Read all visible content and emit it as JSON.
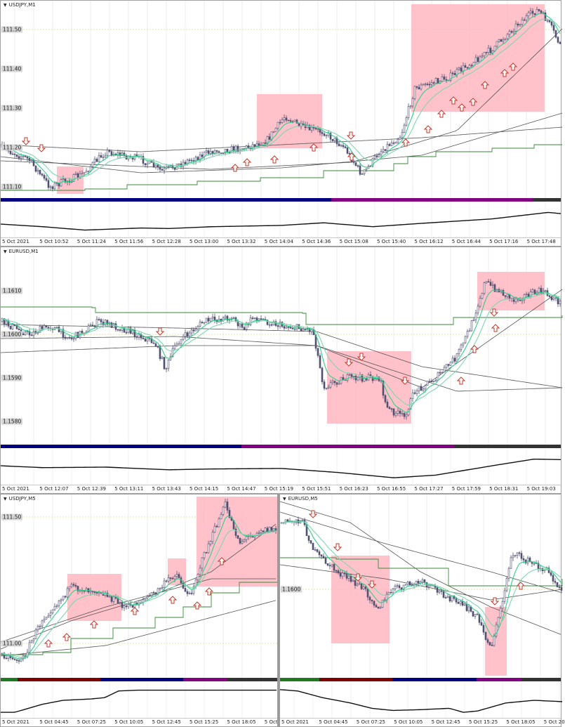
{
  "colors": {
    "bull_bear_candle": "#505070",
    "fast_ma": "#2ecf8a",
    "slow_ma": "#7fd6b0",
    "envelope": "#555555",
    "step_line": "#3a8a3a",
    "zone": "#ffb6c1",
    "arrow": "#c0392b",
    "level_line": "#e6e6a0",
    "oscillator": "#111111"
  },
  "session_colors": {
    "green": "#1f7a1f",
    "darkred": "#800000",
    "navy": "#000080",
    "purple": "#800080",
    "gray": "#333333"
  },
  "panels": [
    {
      "symbol": "USDJPY,M1",
      "price_labels": [
        "111.50",
        "111.40",
        "111.30",
        "111.20",
        "111.10"
      ],
      "time_labels": [
        "5 Oct 2021",
        "5 Oct 10:52",
        "5 Oct 11:24",
        "5 Oct 11:56",
        "5 Oct 12:28",
        "5 Oct 13:00",
        "5 Oct 13:32",
        "5 Oct 14:04",
        "5 Oct 14:36",
        "5 Oct 15:08",
        "5 Oct 15:40",
        "5 Oct 16:12",
        "5 Oct 16:44",
        "5 Oct 17:16",
        "5 Oct 17:48"
      ]
    },
    {
      "symbol": "EURUSD,M1",
      "price_labels": [
        "1.1610",
        "1.1600",
        "1.1590",
        "1.1580"
      ],
      "time_labels": [
        "5 Oct 2021",
        "5 Oct 12:07",
        "5 Oct 12:39",
        "5 Oct 13:11",
        "5 Oct 13:43",
        "5 Oct 14:15",
        "5 Oct 14:47",
        "5 Oct 15:19",
        "5 Oct 15:51",
        "5 Oct 16:23",
        "5 Oct 16:55",
        "5 Oct 17:27",
        "5 Oct 17:59",
        "5 Oct 18:31",
        "5 Oct 19:03"
      ]
    },
    {
      "symbol": "USDJPY,M5",
      "price_labels": [
        "111.50",
        "111.00"
      ],
      "time_labels": [
        "5 Oct 2021",
        "5 Oct 04:45",
        "5 Oct 07:25",
        "5 Oct 10:05",
        "5 Oct 12:45",
        "5 Oct 15:25",
        "5 Oct 18:05",
        "5 Oct 20"
      ]
    },
    {
      "symbol": "EURUSD,M5",
      "price_labels": [
        "1.1600"
      ],
      "time_labels": [
        "5 Oct 2021",
        "5 Oct 04:45",
        "5 Oct 07:25",
        "5 Oct 10:05",
        "5 Oct 12:45",
        "5 Oct 15:25",
        "5 Oct 18:05",
        "5 Oct 20"
      ]
    }
  ]
}
